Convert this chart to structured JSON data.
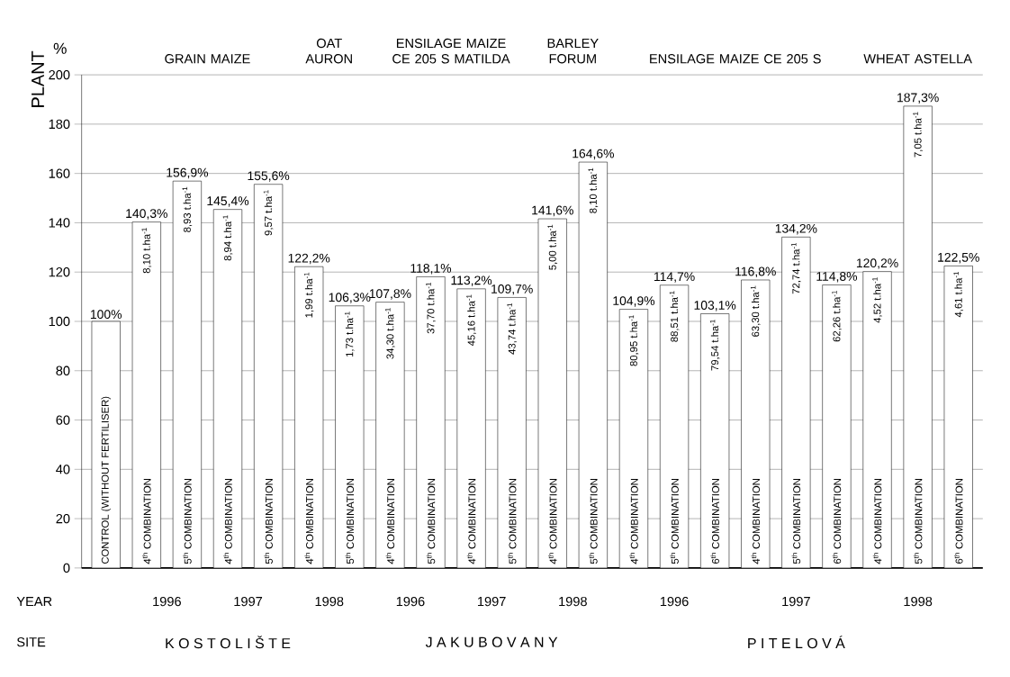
{
  "chart_data": {
    "type": "bar",
    "ylabel": "%",
    "categories": [
      "CONTROL (WITHOUT FERTILISER)",
      "4$^{th}$ COMBINATION",
      "5$^{th}$ COMBINATION",
      "4$^{th}$ COMBINATION",
      "5$^{th}$ COMBINATION",
      "4$^{th}$ COMBINATION",
      "5$^{th}$ COMBINATION",
      "4$^{th}$ COMBINATION",
      "5$^{th}$ COMBINATION",
      "4$^{th}$ COMBINATION",
      "5$^{th}$ COMBINATION",
      "4$^{th}$ COMBINATION",
      "5$^{th}$ COMBINATION",
      "4$^{th}$ COMBINATION",
      "5$^{th}$ COMBINATION",
      "6$^{th}$ COMBINATION",
      "4$^{th}$ COMBINATION",
      "5$^{th}$ COMBINATION",
      "6$^{th}$ COMBINATION",
      "4$^{th}$ COMBINATION",
      "5$^{th}$ COMBINATION",
      "6$^{th}$ COMBINATION"
    ],
    "values": [
      100,
      140.3,
      156.9,
      145.4,
      155.6,
      122.2,
      106.3,
      107.8,
      118.1,
      113.2,
      109.7,
      141.6,
      164.6,
      104.9,
      114.7,
      103.1,
      116.8,
      134.2,
      114.8,
      120.2,
      187.3,
      122.5
    ],
    "value_labels": [
      "100%",
      "140,3%",
      "156,9%",
      "145,4%",
      "155,6%",
      "122,2%",
      "106,3%",
      "107,8%",
      "118,1%",
      "113,2%",
      "109,7%",
      "141,6%",
      "164,6%",
      "104,9%",
      "114,7%",
      "103,1%",
      "116,8%",
      "134,2%",
      "114,8%",
      "120,2%",
      "187,3%",
      "122,5%"
    ],
    "color": "#ffffff",
    "ylim": [
      0,
      200
    ],
    "yticks": [
      0,
      20,
      40,
      60,
      80,
      100,
      120,
      140,
      160,
      180,
      200
    ],
    "grid": "y",
    "annotations": [
      "8,10 t.ha$^{-1}$",
      "8,93 t.ha$^{-1}$",
      "8,94 t.ha$^{-1}$",
      "9,57 t.ha$^{-1}$",
      "1,99 t.ha$^{-1}$",
      "1,73 t.ha$^{-1}$",
      "34,30 t.ha$^{-1}$",
      "37,70 t.ha$^{-1}$",
      "45,16 t.ha$^{-1}$",
      "43,74 t.ha$^{-1}$",
      "5,00 t.ha$^{-1}$",
      "8,10 t.ha$^{-1}$",
      "80,95 t.ha$^{-1}$",
      "88,51 t.ha$^{-1}$",
      "79,54 t.ha$^{-1}$",
      "63,30 t.ha$^{-1}$",
      "72,74 t.ha$^{-1}$",
      "62,26 t.ha$^{-1}$",
      "4,52 t.ha$^{-1}$",
      "7,05 t.ha$^{-1}$",
      "4,61 t.ha$^{-1}$",
      "YEAR",
      "1996",
      "1997",
      "1998",
      "1996",
      "1997",
      "1998",
      "1996",
      "1997",
      "1998",
      "SITE",
      "K O S T O L I Š T E",
      "J A K U B O V A N Y",
      "P I T E L O V Á",
      "PLANT",
      "GRAIN MAIZE",
      "OAT AURON",
      "ENSILAGE MAIZE CE 205 S MATILDA",
      "BARLEY FORUM",
      "ENSILAGE MAIZE CE 205 S",
      "WHEAT ASTELLA"
    ]
  }
}
